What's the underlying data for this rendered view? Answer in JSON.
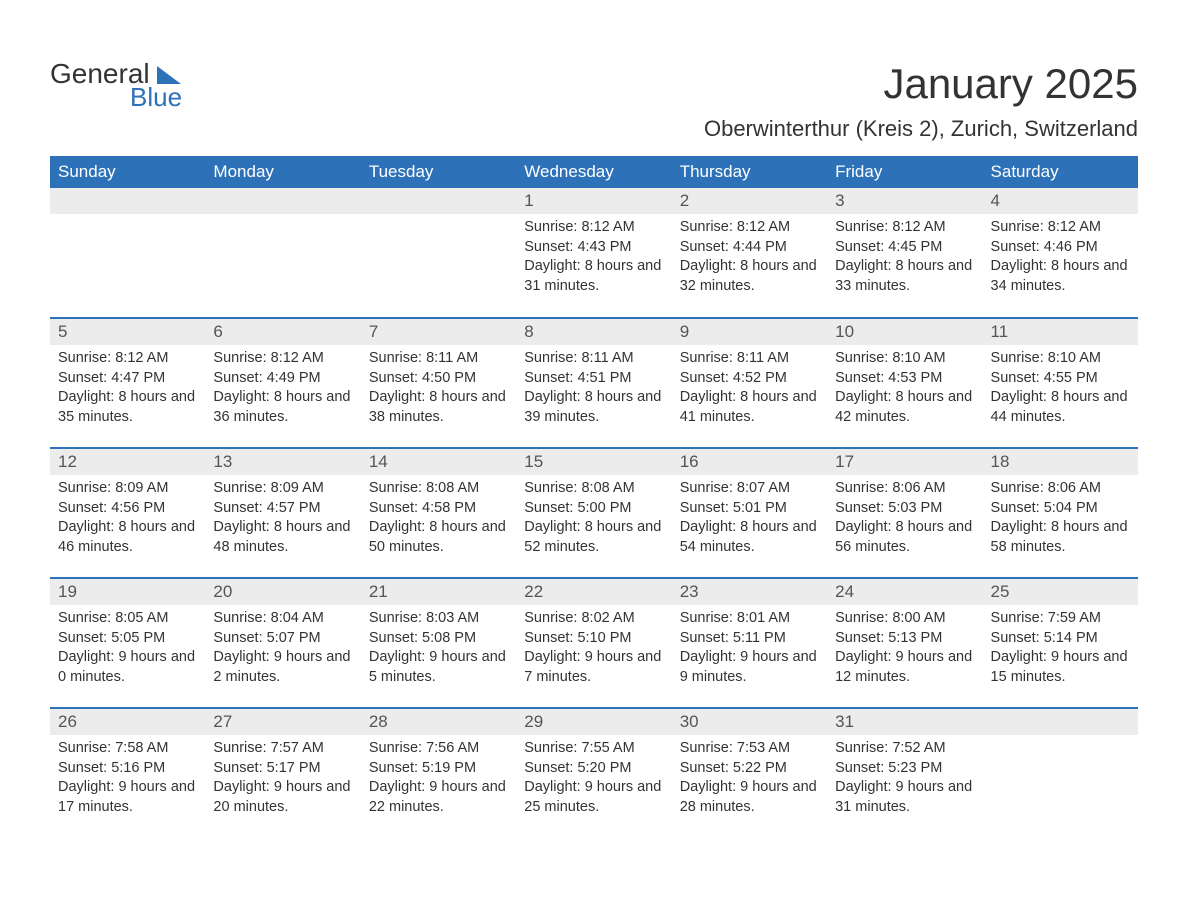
{
  "logo": {
    "text1": "General",
    "text2": "Blue",
    "color_general": "#333333",
    "color_blue": "#2D72B8"
  },
  "header": {
    "title": "January 2025",
    "subtitle": "Oberwinterthur (Kreis 2), Zurich, Switzerland"
  },
  "theme": {
    "header_bg": "#2D72B8",
    "header_fg": "#ffffff",
    "daynum_bg": "#ececec",
    "daynum_fg": "#555555",
    "divider": "#2D72B8",
    "body_bg": "#ffffff",
    "text": "#333333",
    "title_fontsize": 42,
    "subtitle_fontsize": 22,
    "dayheader_fontsize": 17,
    "body_fontsize": 14.5
  },
  "day_names": [
    "Sunday",
    "Monday",
    "Tuesday",
    "Wednesday",
    "Thursday",
    "Friday",
    "Saturday"
  ],
  "weeks": [
    [
      {
        "n": "",
        "lines": []
      },
      {
        "n": "",
        "lines": []
      },
      {
        "n": "",
        "lines": []
      },
      {
        "n": "1",
        "lines": [
          "Sunrise: 8:12 AM",
          "Sunset: 4:43 PM",
          "Daylight: 8 hours and 31 minutes."
        ]
      },
      {
        "n": "2",
        "lines": [
          "Sunrise: 8:12 AM",
          "Sunset: 4:44 PM",
          "Daylight: 8 hours and 32 minutes."
        ]
      },
      {
        "n": "3",
        "lines": [
          "Sunrise: 8:12 AM",
          "Sunset: 4:45 PM",
          "Daylight: 8 hours and 33 minutes."
        ]
      },
      {
        "n": "4",
        "lines": [
          "Sunrise: 8:12 AM",
          "Sunset: 4:46 PM",
          "Daylight: 8 hours and 34 minutes."
        ]
      }
    ],
    [
      {
        "n": "5",
        "lines": [
          "Sunrise: 8:12 AM",
          "Sunset: 4:47 PM",
          "Daylight: 8 hours and 35 minutes."
        ]
      },
      {
        "n": "6",
        "lines": [
          "Sunrise: 8:12 AM",
          "Sunset: 4:49 PM",
          "Daylight: 8 hours and 36 minutes."
        ]
      },
      {
        "n": "7",
        "lines": [
          "Sunrise: 8:11 AM",
          "Sunset: 4:50 PM",
          "Daylight: 8 hours and 38 minutes."
        ]
      },
      {
        "n": "8",
        "lines": [
          "Sunrise: 8:11 AM",
          "Sunset: 4:51 PM",
          "Daylight: 8 hours and 39 minutes."
        ]
      },
      {
        "n": "9",
        "lines": [
          "Sunrise: 8:11 AM",
          "Sunset: 4:52 PM",
          "Daylight: 8 hours and 41 minutes."
        ]
      },
      {
        "n": "10",
        "lines": [
          "Sunrise: 8:10 AM",
          "Sunset: 4:53 PM",
          "Daylight: 8 hours and 42 minutes."
        ]
      },
      {
        "n": "11",
        "lines": [
          "Sunrise: 8:10 AM",
          "Sunset: 4:55 PM",
          "Daylight: 8 hours and 44 minutes."
        ]
      }
    ],
    [
      {
        "n": "12",
        "lines": [
          "Sunrise: 8:09 AM",
          "Sunset: 4:56 PM",
          "Daylight: 8 hours and 46 minutes."
        ]
      },
      {
        "n": "13",
        "lines": [
          "Sunrise: 8:09 AM",
          "Sunset: 4:57 PM",
          "Daylight: 8 hours and 48 minutes."
        ]
      },
      {
        "n": "14",
        "lines": [
          "Sunrise: 8:08 AM",
          "Sunset: 4:58 PM",
          "Daylight: 8 hours and 50 minutes."
        ]
      },
      {
        "n": "15",
        "lines": [
          "Sunrise: 8:08 AM",
          "Sunset: 5:00 PM",
          "Daylight: 8 hours and 52 minutes."
        ]
      },
      {
        "n": "16",
        "lines": [
          "Sunrise: 8:07 AM",
          "Sunset: 5:01 PM",
          "Daylight: 8 hours and 54 minutes."
        ]
      },
      {
        "n": "17",
        "lines": [
          "Sunrise: 8:06 AM",
          "Sunset: 5:03 PM",
          "Daylight: 8 hours and 56 minutes."
        ]
      },
      {
        "n": "18",
        "lines": [
          "Sunrise: 8:06 AM",
          "Sunset: 5:04 PM",
          "Daylight: 8 hours and 58 minutes."
        ]
      }
    ],
    [
      {
        "n": "19",
        "lines": [
          "Sunrise: 8:05 AM",
          "Sunset: 5:05 PM",
          "Daylight: 9 hours and 0 minutes."
        ]
      },
      {
        "n": "20",
        "lines": [
          "Sunrise: 8:04 AM",
          "Sunset: 5:07 PM",
          "Daylight: 9 hours and 2 minutes."
        ]
      },
      {
        "n": "21",
        "lines": [
          "Sunrise: 8:03 AM",
          "Sunset: 5:08 PM",
          "Daylight: 9 hours and 5 minutes."
        ]
      },
      {
        "n": "22",
        "lines": [
          "Sunrise: 8:02 AM",
          "Sunset: 5:10 PM",
          "Daylight: 9 hours and 7 minutes."
        ]
      },
      {
        "n": "23",
        "lines": [
          "Sunrise: 8:01 AM",
          "Sunset: 5:11 PM",
          "Daylight: 9 hours and 9 minutes."
        ]
      },
      {
        "n": "24",
        "lines": [
          "Sunrise: 8:00 AM",
          "Sunset: 5:13 PM",
          "Daylight: 9 hours and 12 minutes."
        ]
      },
      {
        "n": "25",
        "lines": [
          "Sunrise: 7:59 AM",
          "Sunset: 5:14 PM",
          "Daylight: 9 hours and 15 minutes."
        ]
      }
    ],
    [
      {
        "n": "26",
        "lines": [
          "Sunrise: 7:58 AM",
          "Sunset: 5:16 PM",
          "Daylight: 9 hours and 17 minutes."
        ]
      },
      {
        "n": "27",
        "lines": [
          "Sunrise: 7:57 AM",
          "Sunset: 5:17 PM",
          "Daylight: 9 hours and 20 minutes."
        ]
      },
      {
        "n": "28",
        "lines": [
          "Sunrise: 7:56 AM",
          "Sunset: 5:19 PM",
          "Daylight: 9 hours and 22 minutes."
        ]
      },
      {
        "n": "29",
        "lines": [
          "Sunrise: 7:55 AM",
          "Sunset: 5:20 PM",
          "Daylight: 9 hours and 25 minutes."
        ]
      },
      {
        "n": "30",
        "lines": [
          "Sunrise: 7:53 AM",
          "Sunset: 5:22 PM",
          "Daylight: 9 hours and 28 minutes."
        ]
      },
      {
        "n": "31",
        "lines": [
          "Sunrise: 7:52 AM",
          "Sunset: 5:23 PM",
          "Daylight: 9 hours and 31 minutes."
        ]
      },
      {
        "n": "",
        "lines": []
      }
    ]
  ]
}
